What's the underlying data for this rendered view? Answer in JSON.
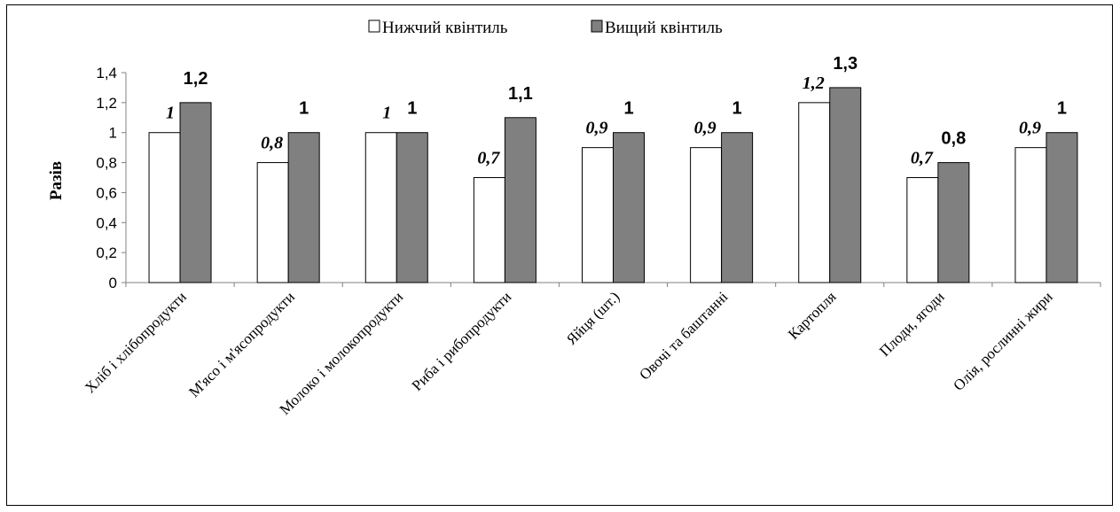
{
  "chart_data": {
    "type": "bar",
    "categories": [
      "Хліб і хлібопродукти",
      "М'ясо і м'ясопродукти",
      "Молоко і молокопродукти",
      "Риба і рибопродукти",
      "Яйця (шт.)",
      "Овочі та баштанні",
      "Картопля",
      "Плоди, ягоди",
      "Олія, рослинні жири"
    ],
    "series": [
      {
        "name": "Нижчий квінтиль",
        "values": [
          1,
          0.8,
          1,
          0.7,
          0.9,
          0.9,
          1.2,
          0.7,
          0.9
        ],
        "labels": [
          "1",
          "0,8",
          "1",
          "0,7",
          "0,9",
          "0,9",
          "1,2",
          "0,7",
          "0,9"
        ],
        "color": "#ffffff"
      },
      {
        "name": "Вищий квінтиль",
        "values": [
          1.2,
          1,
          1,
          1.1,
          1,
          1,
          1.3,
          0.8,
          1
        ],
        "labels": [
          "1,2",
          "1",
          "1",
          "1,1",
          "1",
          "1",
          "1,3",
          "0,8",
          "1"
        ],
        "color": "#808080"
      }
    ],
    "ylabel": "Разів",
    "xlabel": "",
    "ylim": [
      0,
      1.4
    ],
    "yticks": [
      0,
      0.2,
      0.4,
      0.6,
      0.8,
      1,
      1.2,
      1.4
    ],
    "ytick_labels": [
      "0",
      "0,2",
      "0,4",
      "0,6",
      "0,8",
      "1",
      "1,2",
      "1,4"
    ],
    "grid": false,
    "legend_position": "top-center"
  }
}
